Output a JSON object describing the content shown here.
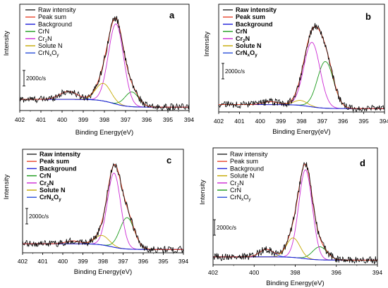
{
  "chart_data": [
    {
      "type": "line",
      "panel": "a",
      "xlabel": "Binding Energy(eV)",
      "ylabel": "Intensity",
      "xlim": [
        402,
        394
      ],
      "xticks": [
        402,
        401,
        400,
        399,
        398,
        397,
        396,
        395,
        394
      ],
      "scale_bar": "2000c/s",
      "legend_bold": false,
      "legend": [
        {
          "key": "raw",
          "text": "Raw intensity"
        },
        {
          "key": "sum",
          "text": "Peak sum"
        },
        {
          "key": "bg",
          "text": "Background"
        },
        {
          "key": "p1",
          "text": "CrN"
        },
        {
          "key": "p2",
          "text": "Cr2N",
          "base": "Cr",
          "sub": "2",
          "rest": "N"
        },
        {
          "key": "p3",
          "text": "Solute N"
        },
        {
          "key": "p4",
          "text": "CrNxOy",
          "base": "CrN",
          "sub": "x",
          "rest": "O",
          "sub2": "y"
        }
      ],
      "ylim": [
        0,
        1.0
      ],
      "background": {
        "start": 0.1,
        "end": 0.02
      },
      "peaks": [
        {
          "key": "p1",
          "center": 396.7,
          "height": 0.15,
          "width": 0.55
        },
        {
          "key": "p2",
          "center": 397.45,
          "height": 0.82,
          "width": 0.6
        },
        {
          "key": "p3",
          "center": 398.05,
          "height": 0.18,
          "width": 0.6
        },
        {
          "key": "p4",
          "center": 399.7,
          "height": 0.08,
          "width": 0.7
        }
      ]
    },
    {
      "type": "line",
      "panel": "b",
      "xlabel": "Binding Energy(eV)",
      "ylabel": "Intensity",
      "xlim": [
        402,
        394
      ],
      "xticks": [
        402,
        401,
        400,
        399,
        398,
        397,
        396,
        395,
        394
      ],
      "scale_bar": "2000c/s",
      "legend_bold": true,
      "legend": [
        {
          "key": "raw",
          "text": "Raw intensity"
        },
        {
          "key": "sum",
          "text": "Peak sum"
        },
        {
          "key": "bg",
          "text": "Background"
        },
        {
          "key": "p1",
          "text": "CrN"
        },
        {
          "key": "p2",
          "text": "Cr2N",
          "base": "Cr",
          "sub": "2",
          "rest": "N"
        },
        {
          "key": "p3",
          "text": "Solute N"
        },
        {
          "key": "p4",
          "text": "CrNxOy",
          "base": "CrN",
          "sub": "x",
          "rest": "O",
          "sub2": "y"
        }
      ],
      "ylim": [
        0,
        1.0
      ],
      "background": {
        "start": 0.06,
        "end": 0.02
      },
      "peaks": [
        {
          "key": "p1",
          "center": 396.85,
          "height": 0.47,
          "width": 0.65
        },
        {
          "key": "p2",
          "center": 397.5,
          "height": 0.65,
          "width": 0.65
        },
        {
          "key": "p3",
          "center": 398.05,
          "height": 0.05,
          "width": 0.55
        },
        {
          "key": "p4",
          "center": 399.5,
          "height": 0.03,
          "width": 0.6
        }
      ]
    },
    {
      "type": "line",
      "panel": "c",
      "xlabel": "Binding Energy(eV)",
      "ylabel": "Intensity",
      "xlim": [
        402,
        394
      ],
      "xticks": [
        402,
        401,
        400,
        399,
        398,
        397,
        396,
        395,
        394
      ],
      "scale_bar": "2000c/s",
      "legend_bold": true,
      "legend": [
        {
          "key": "raw",
          "text": "Raw intensity"
        },
        {
          "key": "sum",
          "text": "Peak sum"
        },
        {
          "key": "bg",
          "text": "Background"
        },
        {
          "key": "p1",
          "text": "CrN"
        },
        {
          "key": "p2",
          "text": "Cr2N",
          "base": "Cr",
          "sub": "2",
          "rest": "N"
        },
        {
          "key": "p3",
          "text": "Solute N"
        },
        {
          "key": "p4",
          "text": "CrNxOy",
          "base": "CrN",
          "sub": "x",
          "rest": "O",
          "sub2": "y"
        }
      ],
      "ylim": [
        0,
        1.0
      ],
      "background": {
        "start": 0.08,
        "end": 0.02
      },
      "peaks": [
        {
          "key": "p1",
          "center": 396.8,
          "height": 0.33,
          "width": 0.6
        },
        {
          "key": "p2",
          "center": 397.45,
          "height": 0.78,
          "width": 0.55
        },
        {
          "key": "p3",
          "center": 398.05,
          "height": 0.1,
          "width": 0.6
        },
        {
          "key": "p4",
          "center": 399.5,
          "height": 0.03,
          "width": 0.6
        }
      ]
    },
    {
      "type": "line",
      "panel": "d",
      "xlabel": "Binding Energy(eV)",
      "ylabel": "Intensity",
      "xlim": [
        402,
        394
      ],
      "xticks": [
        402,
        400,
        398,
        396,
        394
      ],
      "scale_bar": "2000c/s",
      "legend_bold": false,
      "legend": [
        {
          "key": "raw",
          "text": "Raw intensity"
        },
        {
          "key": "sum",
          "text": "Peak sum"
        },
        {
          "key": "bg",
          "text": "Background"
        },
        {
          "key": "p3",
          "text": "Solute N"
        },
        {
          "key": "p2",
          "text": "Cr2N",
          "base": "Cr",
          "sub": "2",
          "rest": "N"
        },
        {
          "key": "p1",
          "text": "CrN"
        },
        {
          "key": "p4",
          "text": "CrNxOy",
          "base": "CrN",
          "sub": "x",
          "rest": "O",
          "sub2": "y"
        }
      ],
      "ylim": [
        0,
        1.0
      ],
      "background": {
        "start": 0.06,
        "end": 0.03
      },
      "peaks": [
        {
          "key": "p1",
          "center": 396.8,
          "height": 0.12,
          "width": 0.6
        },
        {
          "key": "p2",
          "center": 397.5,
          "height": 0.82,
          "width": 0.55
        },
        {
          "key": "p3",
          "center": 398.1,
          "height": 0.18,
          "width": 0.55
        },
        {
          "key": "p4",
          "center": 399.4,
          "height": 0.07,
          "width": 0.55
        }
      ]
    }
  ],
  "colors": {
    "raw": "#000000",
    "sum": "#e8452c",
    "bg": "#1f1fd8",
    "p1": "#1a9a1a",
    "p2": "#cc2ad4",
    "p3": "#c4a800",
    "p4": "#2a4fd8"
  }
}
